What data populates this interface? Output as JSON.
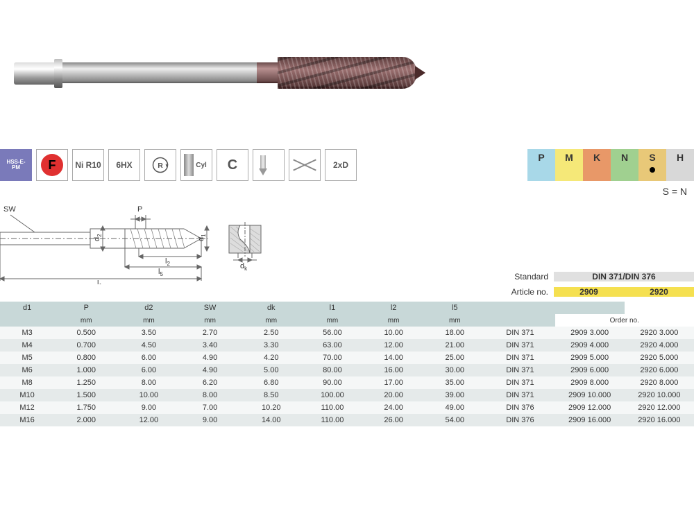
{
  "icons": [
    {
      "key": "hss",
      "label": "HSS-E-\nPM",
      "class": "icon-hss"
    },
    {
      "key": "f",
      "label": "F",
      "class": "icon-f"
    },
    {
      "key": "ni",
      "label": "Ni R10",
      "class": ""
    },
    {
      "key": "6hx",
      "label": "6HX",
      "class": ""
    },
    {
      "key": "r",
      "label": "R",
      "class": "icon-r"
    },
    {
      "key": "cyl",
      "label": "Cyl",
      "class": "icon-cyl"
    },
    {
      "key": "c",
      "label": "C",
      "class": ""
    },
    {
      "key": "vtip",
      "label": "",
      "class": "icon-vtip"
    },
    {
      "key": "cross",
      "label": "",
      "class": "icon-cross"
    },
    {
      "key": "2xd",
      "label": "2xD",
      "class": ""
    }
  ],
  "materials": [
    {
      "code": "P",
      "bg": "#a8d8e8",
      "dot": false
    },
    {
      "code": "M",
      "bg": "#f5e878",
      "dot": false
    },
    {
      "code": "K",
      "bg": "#e89868",
      "dot": false
    },
    {
      "code": "N",
      "bg": "#a0d090",
      "dot": false
    },
    {
      "code": "S",
      "bg": "#e8c878",
      "dot": true
    },
    {
      "code": "H",
      "bg": "#d8d8d8",
      "dot": false
    }
  ],
  "material_legend": "S = N",
  "diagram_labels": {
    "sw": "SW",
    "p": "P",
    "d2": "d",
    "d1": "d",
    "dk": "d",
    "l1": "l",
    "l2": "l",
    "l5": "l",
    "sub2": "2",
    "sub1": "1",
    "subk": "k",
    "sub5": "5"
  },
  "info": {
    "standard_label": "Standard",
    "standard_value": "DIN 371/DIN 376",
    "article_label": "Article no.",
    "article_values": [
      "2909",
      "2920"
    ]
  },
  "spec_headers_1": [
    "d1",
    "P",
    "d2",
    "SW",
    "dk",
    "l1",
    "l2",
    "l5",
    "",
    ""
  ],
  "spec_headers_2": [
    "",
    "mm",
    "mm",
    "mm",
    "mm",
    "mm",
    "mm",
    "mm",
    "",
    "Order no."
  ],
  "spec_rows": [
    {
      "d1": "M3",
      "P": "0.500",
      "d2": "3.50",
      "SW": "2.70",
      "dk": "2.50",
      "l1": "56.00",
      "l2": "10.00",
      "l5": "18.00",
      "din": "DIN 371",
      "o1": "2909 3.000",
      "o2": "2920 3.000"
    },
    {
      "d1": "M4",
      "P": "0.700",
      "d2": "4.50",
      "SW": "3.40",
      "dk": "3.30",
      "l1": "63.00",
      "l2": "12.00",
      "l5": "21.00",
      "din": "DIN 371",
      "o1": "2909 4.000",
      "o2": "2920 4.000"
    },
    {
      "d1": "M5",
      "P": "0.800",
      "d2": "6.00",
      "SW": "4.90",
      "dk": "4.20",
      "l1": "70.00",
      "l2": "14.00",
      "l5": "25.00",
      "din": "DIN 371",
      "o1": "2909 5.000",
      "o2": "2920 5.000"
    },
    {
      "d1": "M6",
      "P": "1.000",
      "d2": "6.00",
      "SW": "4.90",
      "dk": "5.00",
      "l1": "80.00",
      "l2": "16.00",
      "l5": "30.00",
      "din": "DIN 371",
      "o1": "2909 6.000",
      "o2": "2920 6.000"
    },
    {
      "d1": "M8",
      "P": "1.250",
      "d2": "8.00",
      "SW": "6.20",
      "dk": "6.80",
      "l1": "90.00",
      "l2": "17.00",
      "l5": "35.00",
      "din": "DIN 371",
      "o1": "2909 8.000",
      "o2": "2920 8.000"
    },
    {
      "d1": "M10",
      "P": "1.500",
      "d2": "10.00",
      "SW": "8.00",
      "dk": "8.50",
      "l1": "100.00",
      "l2": "20.00",
      "l5": "39.00",
      "din": "DIN 371",
      "o1": "2909 10.000",
      "o2": "2920 10.000"
    },
    {
      "d1": "M12",
      "P": "1.750",
      "d2": "9.00",
      "SW": "7.00",
      "dk": "10.20",
      "l1": "110.00",
      "l2": "24.00",
      "l5": "49.00",
      "din": "DIN 376",
      "o1": "2909 12.000",
      "o2": "2920 12.000"
    },
    {
      "d1": "M16",
      "P": "2.000",
      "d2": "12.00",
      "SW": "9.00",
      "dk": "14.00",
      "l1": "110.00",
      "l2": "26.00",
      "l5": "54.00",
      "din": "DIN 376",
      "o1": "2909 16.000",
      "o2": "2920 16.000"
    }
  ],
  "colors": {
    "header_bg": "#c8d8d8",
    "row_alt": "#e5eaea",
    "row_base": "#f5f7f7",
    "article_bg": "#f5e050",
    "article_fg": "#a04000",
    "std_bg": "#e0e0e0"
  }
}
